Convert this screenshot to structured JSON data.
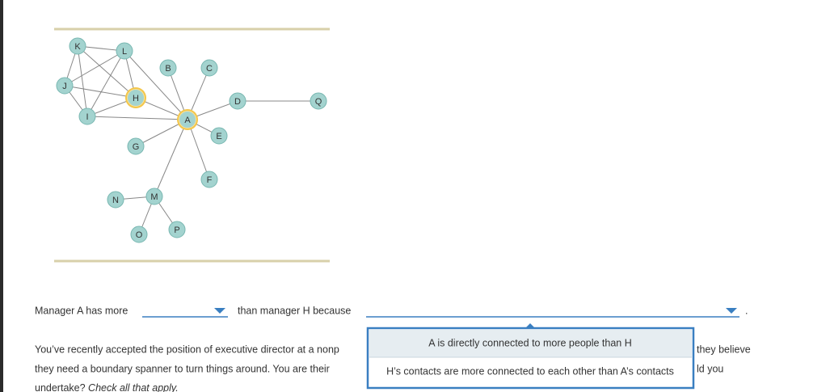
{
  "network": {
    "nodes": [
      "K",
      "L",
      "B",
      "C",
      "J",
      "H",
      "D",
      "Q",
      "I",
      "A",
      "E",
      "G",
      "F",
      "N",
      "M",
      "P",
      "O"
    ]
  },
  "question": {
    "part1": "Manager A has more",
    "part2": "than manager H because",
    "end": "."
  },
  "dropdown_options": [
    "A is directly connected to more people than H",
    "H’s contacts are more connected to each other than A’s contacts"
  ],
  "paragraph": {
    "line1_left": "You’ve recently accepted the position of executive director at a nonp",
    "line1_right": "they believe",
    "line2_left": "they need a boundary spanner to turn things around. You are their",
    "line2_right": "ld you",
    "line3": "undertake?",
    "line3_italic": "Check all that apply."
  }
}
